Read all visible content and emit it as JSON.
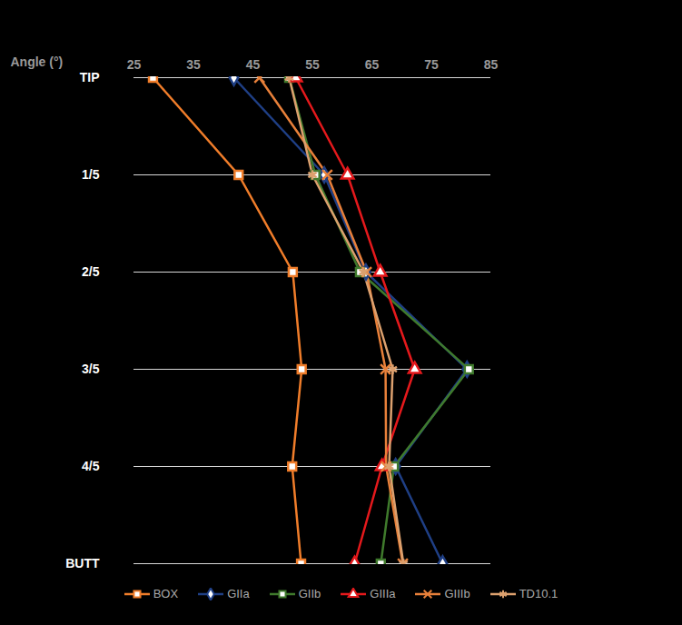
{
  "chart_data": {
    "type": "line",
    "x_label": "Angle (°)",
    "categories": [
      "TIP",
      "1/5",
      "2/5",
      "3/5",
      "4/5",
      "BUTT"
    ],
    "xlim": [
      25,
      85
    ],
    "xticks": [
      25,
      35,
      45,
      55,
      65,
      75,
      85
    ],
    "grid": true,
    "legend": "bottom",
    "series": [
      {
        "name": "BOX",
        "color": "#f07d2a",
        "marker": "square",
        "values": [
          28.2,
          42.6,
          51.7,
          53.2,
          51.6,
          53.1
        ]
      },
      {
        "name": "GIIa",
        "color": "#1f3f85",
        "marker": "diamond",
        "values": [
          41.8,
          57,
          64,
          81,
          69,
          76.9
        ]
      },
      {
        "name": "GIIb",
        "color": "#3f7a2c",
        "marker": "square",
        "values": [
          51.1,
          55.5,
          63,
          81.3,
          68.7,
          66.5
        ]
      },
      {
        "name": "GIIIa",
        "color": "#e5191c",
        "marker": "triangle",
        "values": [
          52.2,
          60.9,
          66.4,
          72.2,
          66.7,
          62.1
        ]
      },
      {
        "name": "GIIIb",
        "color": "#e8803a",
        "marker": "times",
        "values": [
          46.1,
          57.5,
          64.1,
          67.3,
          67.4,
          70.2
        ]
      },
      {
        "name": "TD10.1",
        "color": "#dca06e",
        "marker": "asterisk",
        "values": [
          51.1,
          55,
          63.6,
          68.5,
          67.9,
          70.3
        ]
      }
    ]
  }
}
